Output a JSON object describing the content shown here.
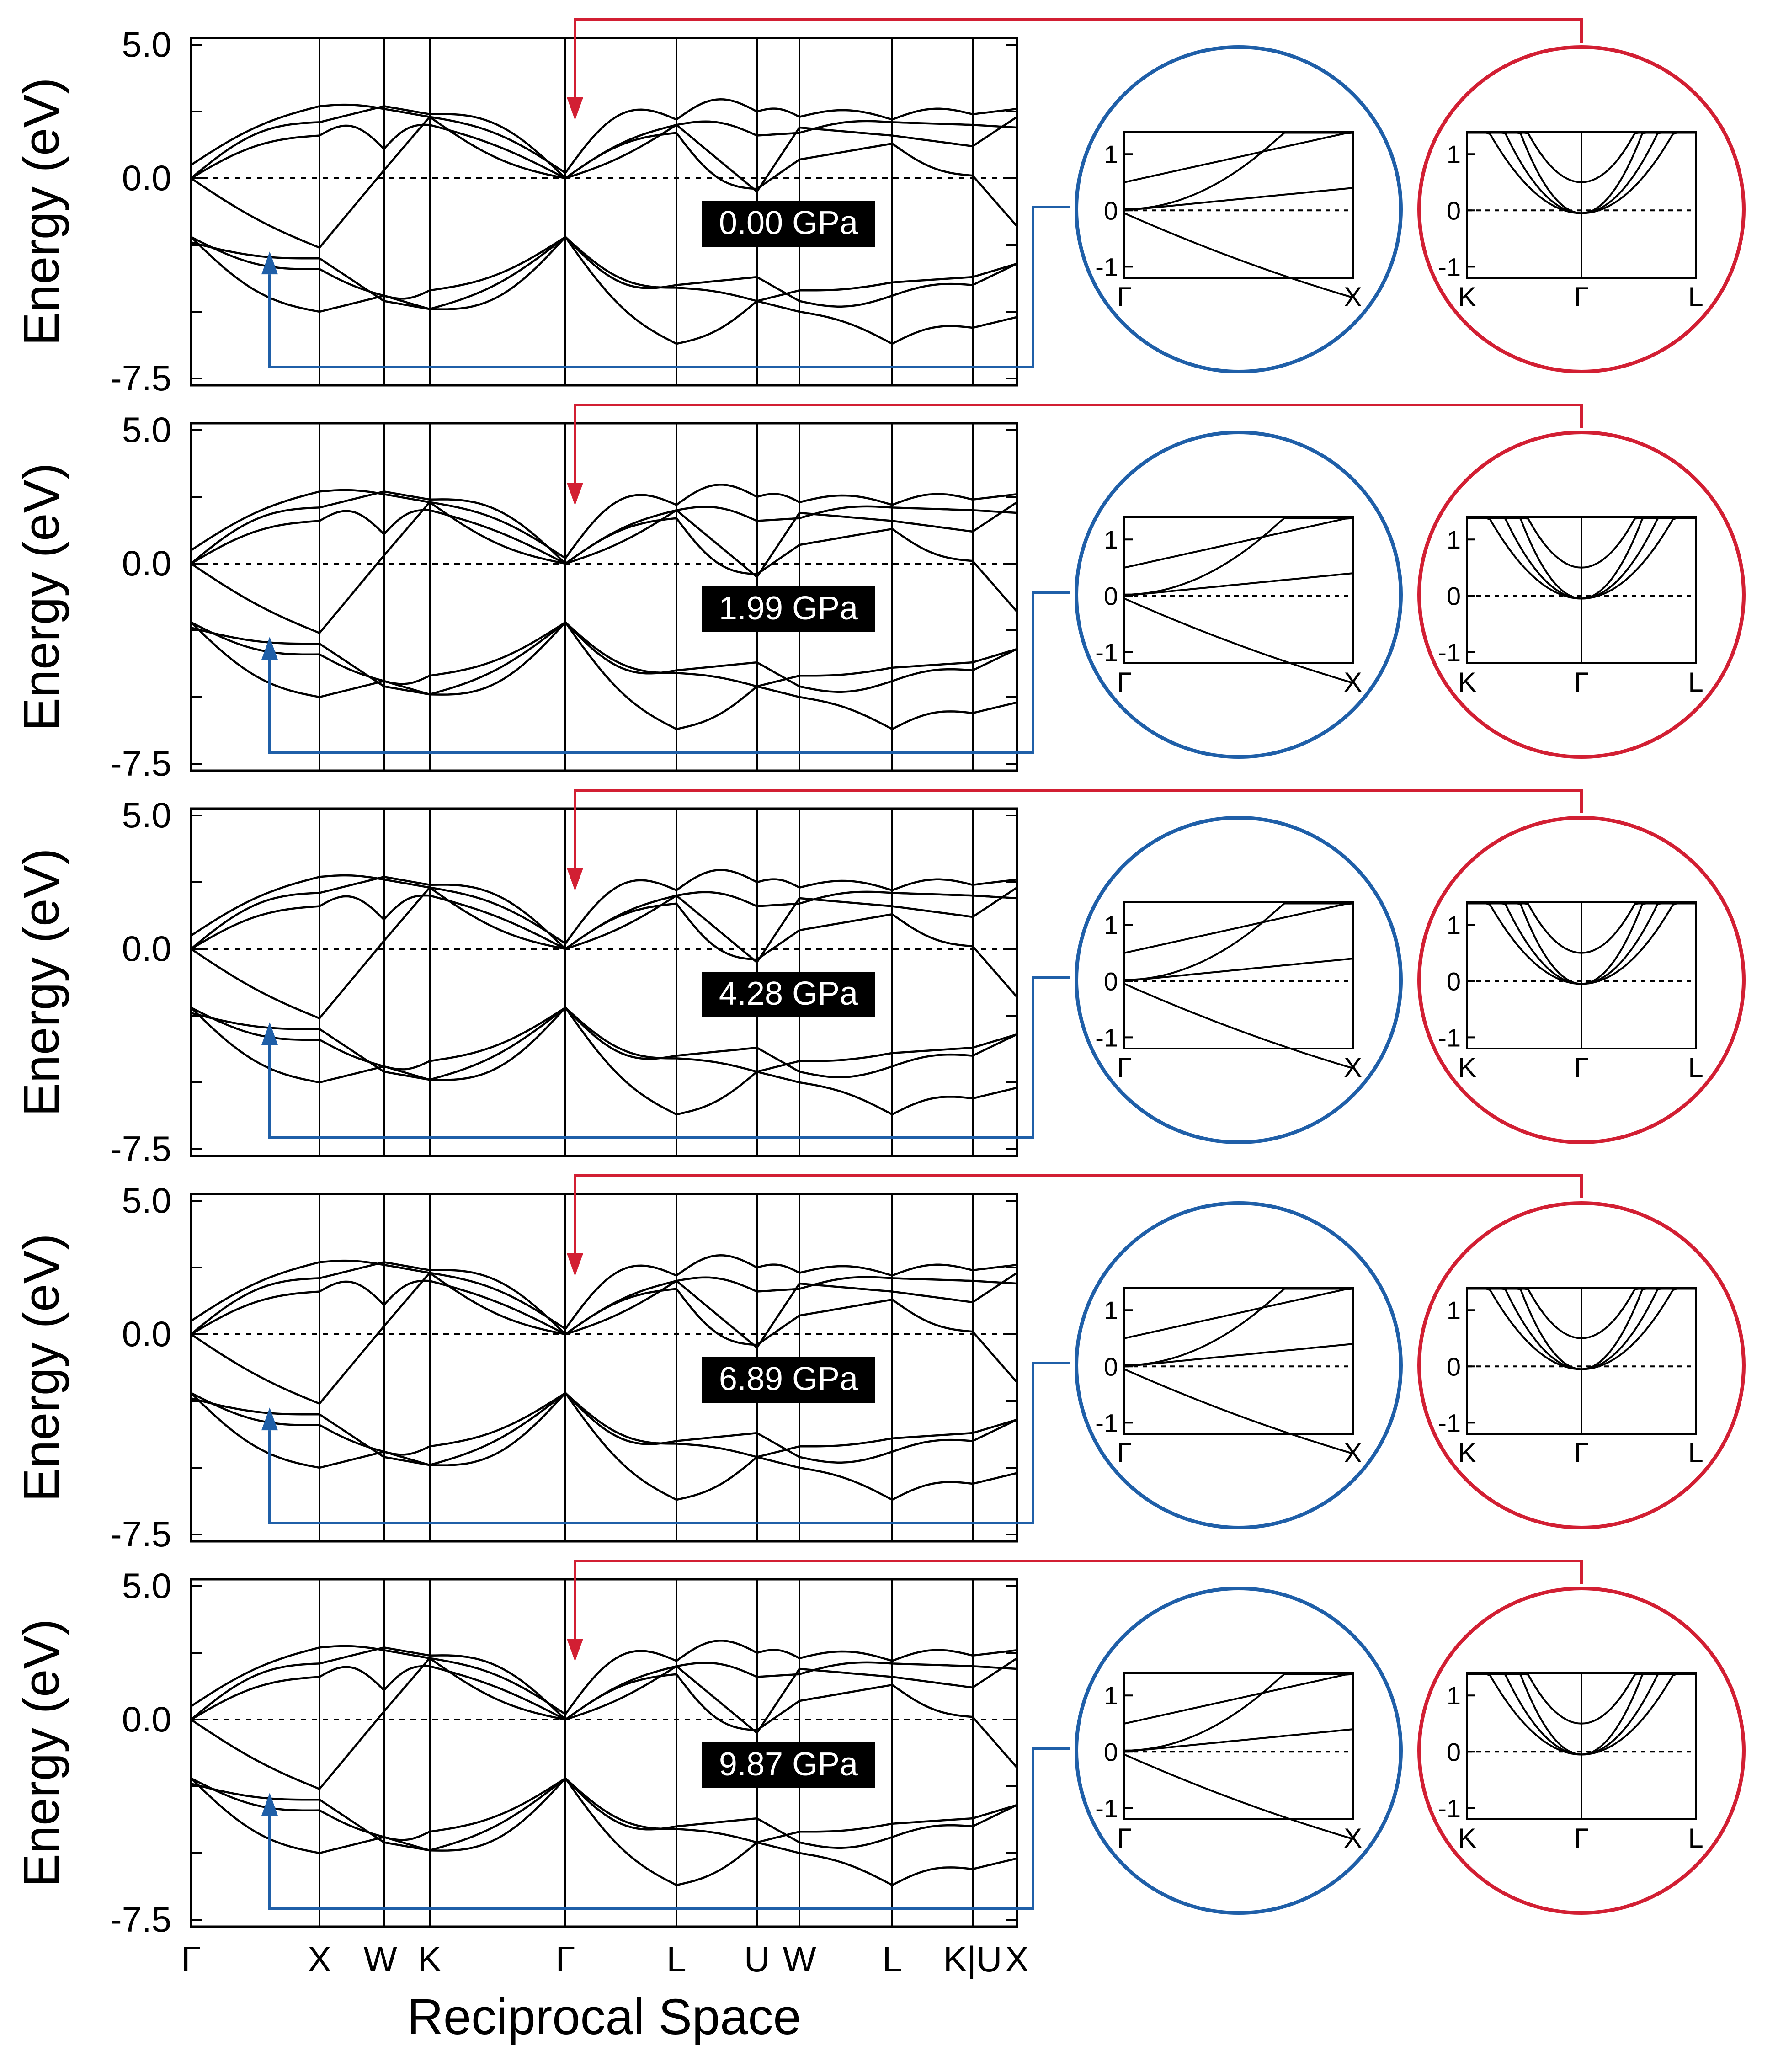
{
  "figure": {
    "ylabel": "Energy (eV)",
    "xlabel": "Reciprocal Space",
    "colors": {
      "band": "#000000",
      "red": "#d21f33",
      "blue": "#1f5fa8",
      "badge_bg": "#000000",
      "badge_text": "#ffffff"
    }
  },
  "chart_data": [
    {
      "type": "line",
      "subject": "electronic band structure",
      "xlabel": "Reciprocal Space",
      "ylabel": "Energy (eV)",
      "ylim": [
        -7.5,
        5.0
      ],
      "yticks": [
        "5.0",
        "0.0",
        "-7.5"
      ],
      "high_symmetry_points": [
        "Γ",
        "X",
        "W",
        "K",
        "Γ",
        "L",
        "U",
        "W",
        "L",
        "K|U",
        "X"
      ],
      "panels": [
        {
          "pressure_label": "0.00 GPa",
          "vbm_eV": 0.0,
          "lowest_valence_gamma_eV": -2.2
        },
        {
          "pressure_label": "1.99 GPa",
          "vbm_eV": 0.0,
          "lowest_valence_gamma_eV": -2.2
        },
        {
          "pressure_label": "4.28 GPa",
          "vbm_eV": 0.0,
          "lowest_valence_gamma_eV": -2.1
        },
        {
          "pressure_label": "6.89 GPa",
          "vbm_eV": 0.0,
          "lowest_valence_gamma_eV": -2.0
        },
        {
          "pressure_label": "9.87 GPa",
          "vbm_eV": 0.0,
          "lowest_valence_gamma_eV": -1.9
        }
      ]
    },
    {
      "type": "line",
      "subject": "zoom insets (blue circle)",
      "path": [
        "Γ",
        "X"
      ],
      "yticks": [
        "1",
        "0",
        "-1"
      ],
      "ylim": [
        -1.2,
        1.4
      ]
    },
    {
      "type": "line",
      "subject": "zoom insets (red circle)",
      "path": [
        "K",
        "Γ",
        "L"
      ],
      "yticks": [
        "1",
        "0",
        "-1"
      ],
      "ylim": [
        -1.2,
        1.4
      ]
    }
  ]
}
